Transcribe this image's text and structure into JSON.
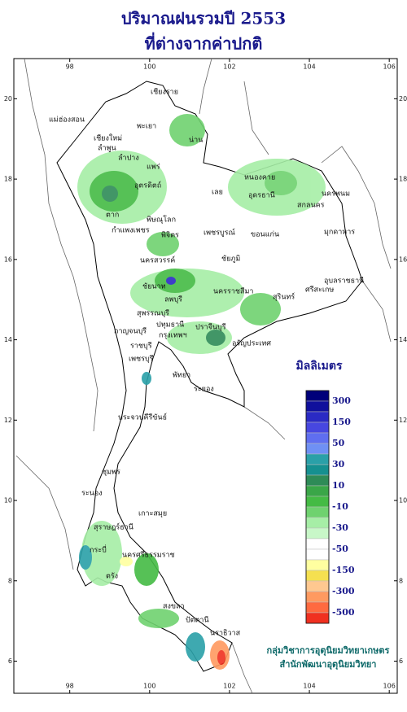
{
  "title_lines": [
    "ปริมาณฝนรวมปี 2553",
    "ที่ต่างจากค่าปกติ"
  ],
  "map": {
    "xlim": [
      96.6,
      106.2
    ],
    "ylim": [
      5.2,
      21.0
    ],
    "xticks": [
      98,
      100,
      102,
      104,
      106
    ],
    "yticks": [
      6,
      8,
      10,
      12,
      14,
      16,
      18,
      20
    ]
  },
  "legend": {
    "title": "มิลลิเมตร",
    "colors": [
      "#00007a",
      "#10109c",
      "#2a2ac4",
      "#4747e0",
      "#5f6ef0",
      "#6f90f4",
      "#2aa0a8",
      "#159090",
      "#2e8b57",
      "#3aa648",
      "#44bb44",
      "#6fd26f",
      "#a6eea6",
      "#c8f7c8",
      "#ffffff",
      "#ffffff",
      "#ffffa0",
      "#f5e050",
      "#ffc890",
      "#ff9a60",
      "#ff6a40",
      "#f03020"
    ],
    "labels": [
      300,
      150,
      50,
      30,
      10,
      -10,
      -30,
      -50,
      -150,
      -300,
      -500
    ]
  },
  "places": [
    "เชียงราย",
    "แม่ฮ่องสอน",
    "เชียงใหม่",
    "พะเยา",
    "น่าน",
    "ลำพูน",
    "ลำปาง",
    "แพร่",
    "อุตรดิตถ์",
    "หนองคาย",
    "อุดรธานี",
    "นครพนม",
    "สกลนคร",
    "เลย",
    "ตาก",
    "พิษณุโลก",
    "มุกดาหาร",
    "กำแพงเพชร",
    "พิจิตร",
    "เพชรบูรณ์",
    "ขอนแก่น",
    "นครสวรรค์",
    "ชัยภูมิ",
    "อุบลราชธานี",
    "ชัยนาท",
    "ลพบุรี",
    "นครราชสีมา",
    "สุรินทร์",
    "ศรีสะเกษ",
    "สุพรรณบุรี",
    "กาญจนบุรี",
    "ปทุมธานี",
    "กรุงเทพฯ",
    "ปราจีนบุรี",
    "อรัญประเทศ",
    "ราชบุรี",
    "เพชรบุรี",
    "พัทยา",
    "ระยอง",
    "ประจวบคีรีขันธ์",
    "ชุมพร",
    "ระนอง",
    "เกาะสมุย",
    "สุราษฎร์ธานี",
    "นครศรีธรรมราช",
    "กระบี่",
    "ตรัง",
    "สงขลา",
    "ปัตตานี",
    "นราธิวาส"
  ],
  "credits": [
    "กลุ่มวิชาการอุตุนิยมวิทยาเกษตร",
    "สำนักพัฒนาอุตุนิยมวิทยา"
  ]
}
